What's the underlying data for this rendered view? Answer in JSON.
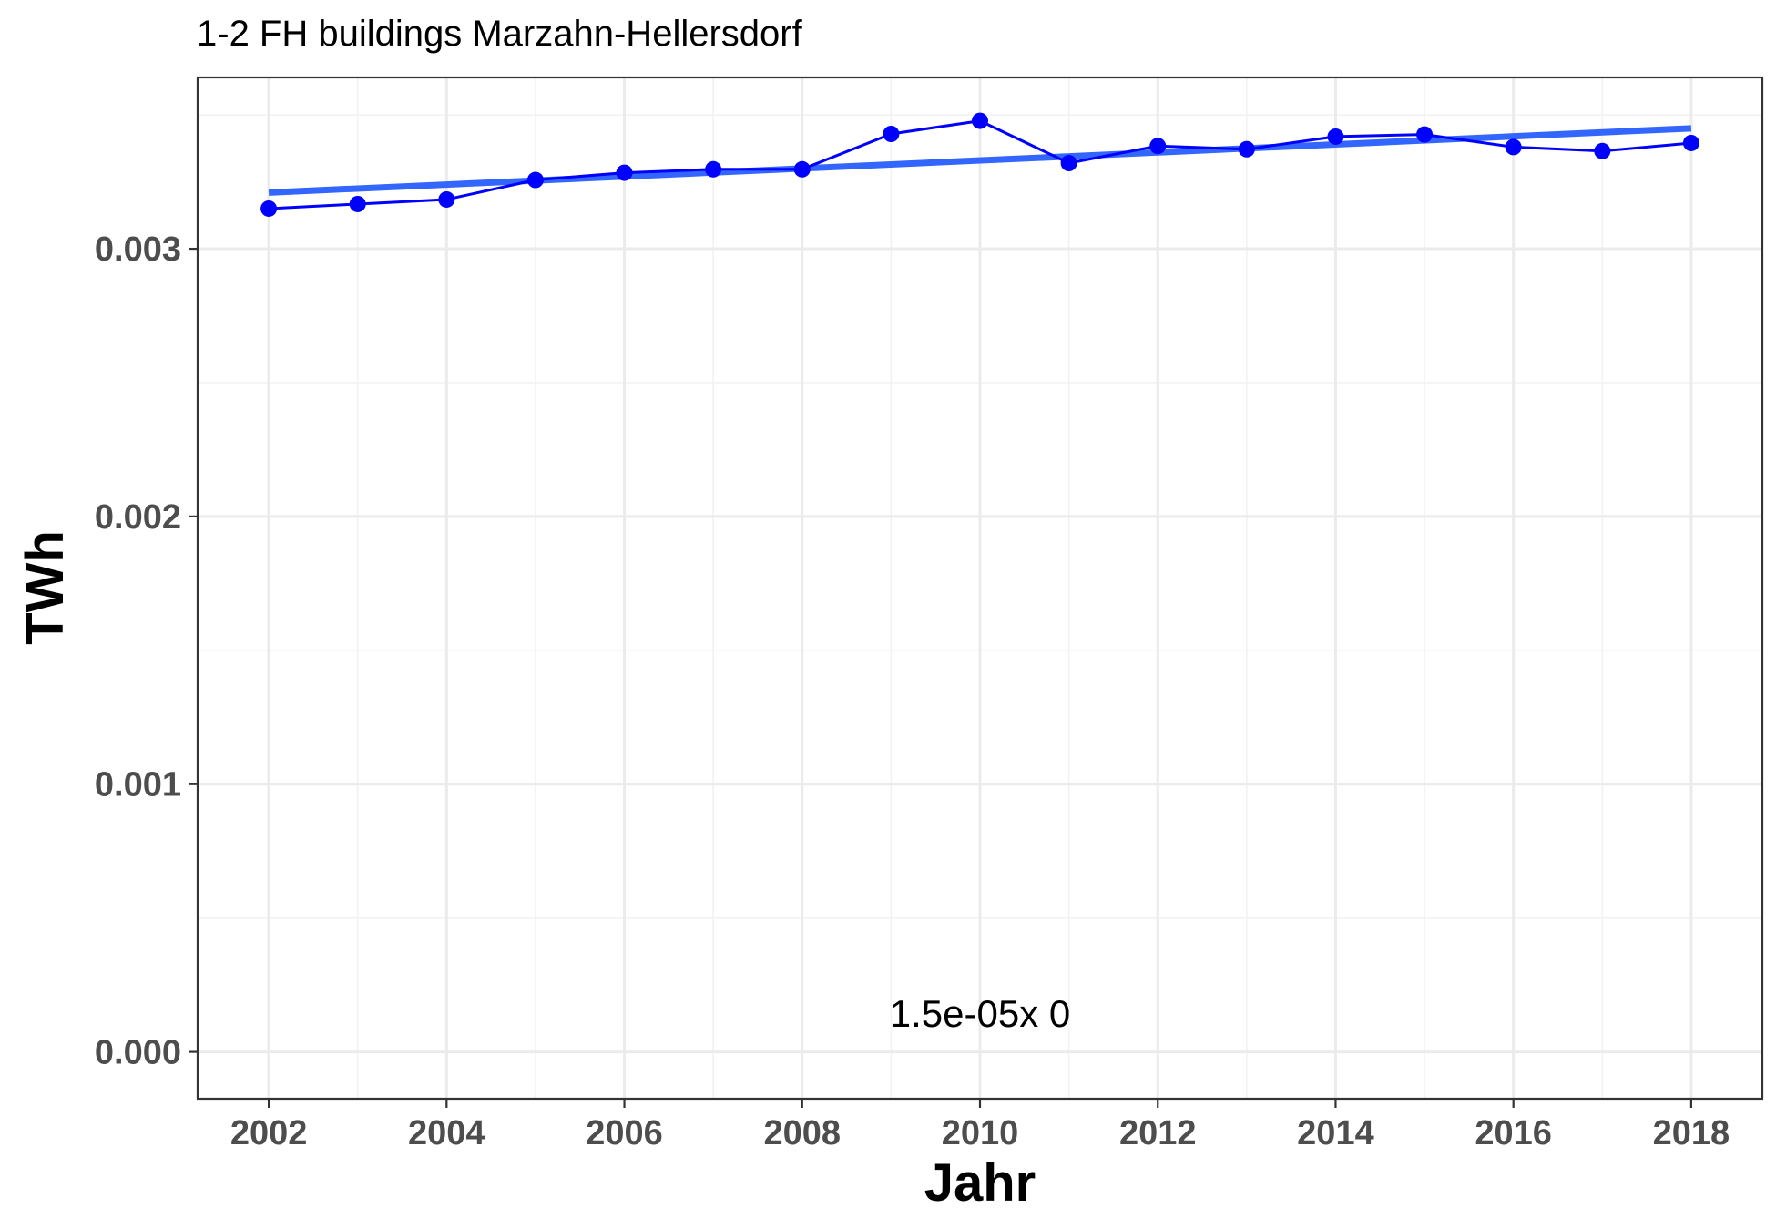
{
  "chart_data": {
    "type": "line",
    "title": "1-2 FH buildings Marzahn-Hellersdorf",
    "xlabel": "Jahr",
    "ylabel": "TWh",
    "xlim": [
      2001.2,
      2018.8
    ],
    "ylim": [
      -0.000175,
      0.00364
    ],
    "x_ticks": [
      2002,
      2004,
      2006,
      2008,
      2010,
      2012,
      2014,
      2016,
      2018
    ],
    "x_tick_labels": [
      "2002",
      "2004",
      "2006",
      "2008",
      "2010",
      "2012",
      "2014",
      "2016",
      "2018"
    ],
    "y_ticks": [
      0.0,
      0.001,
      0.002,
      0.003
    ],
    "y_tick_labels": [
      "0.000",
      "0.001",
      "0.002",
      "0.003"
    ],
    "grid": true,
    "series": [
      {
        "color": "#0000ff",
        "x": [
          2002,
          2003,
          2004,
          2005,
          2006,
          2007,
          2008,
          2009,
          2010,
          2011,
          2012,
          2013,
          2014,
          2015,
          2016,
          2017,
          2018
        ],
        "values": [
          0.00315,
          0.003167,
          0.003184,
          0.003257,
          0.003284,
          0.003297,
          0.003297,
          0.003429,
          0.003478,
          0.00332,
          0.003384,
          0.003372,
          0.003419,
          0.003427,
          0.00338,
          0.003365,
          0.003395
        ]
      }
    ],
    "trend_line": {
      "color": "#3366ff",
      "x": [
        2002,
        2018
      ],
      "values": [
        0.00321,
        0.00345
      ]
    },
    "annotation": {
      "text": "1.5e-05x 0",
      "x": 2010,
      "y": 0.000145
    }
  }
}
